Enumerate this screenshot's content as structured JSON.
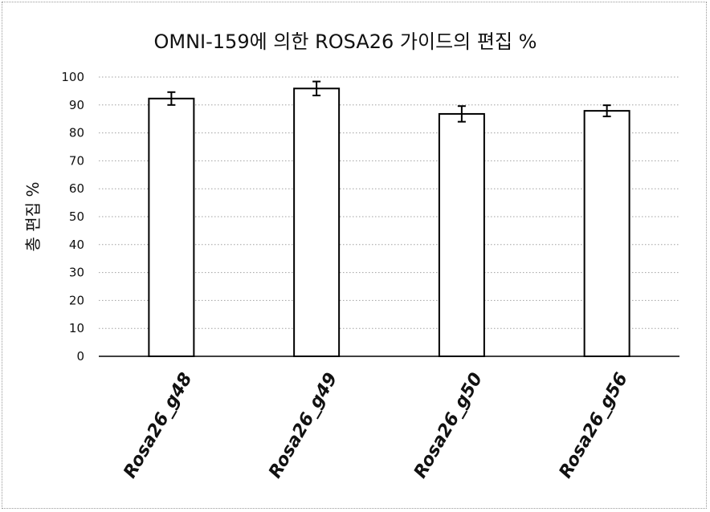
{
  "chart_data": {
    "type": "bar",
    "title": "OMNI-159에 의한 ROSA26 가이드의 편집 %",
    "xlabel": "",
    "ylabel": "총 편집 %",
    "categories": [
      "Rosa26_g48",
      "Rosa26_g49",
      "Rosa26_g50",
      "Rosa26_g56"
    ],
    "series": [
      {
        "values": [
          92.3,
          95.9,
          86.8,
          87.9
        ],
        "errors": [
          2.3,
          2.5,
          2.8,
          2.0
        ]
      }
    ],
    "ylim": [
      0,
      100
    ],
    "yticks": [
      0,
      10,
      20,
      30,
      40,
      50,
      60,
      70,
      80,
      90,
      100
    ],
    "grid": true,
    "bar_fill": "#ffffff",
    "bar_stroke": "#000000",
    "gridline_color": "#a0a0a0"
  }
}
